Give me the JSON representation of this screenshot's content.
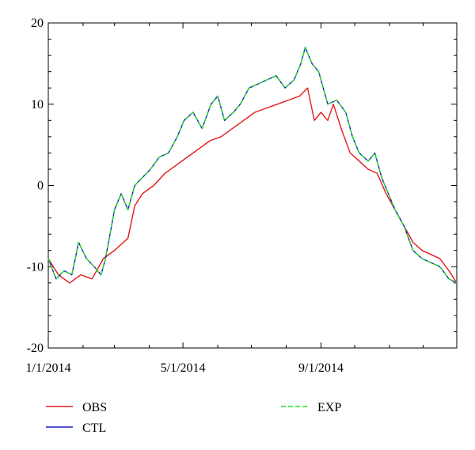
{
  "chart_data": {
    "type": "line",
    "x_unit": "day of year 2014",
    "x_tick_labels": [
      {
        "label": "1/1/2014",
        "x": 1
      },
      {
        "label": "5/1/2014",
        "x": 121
      },
      {
        "label": "9/1/2014",
        "x": 244
      }
    ],
    "xlim": [
      1,
      365
    ],
    "ylim": [
      -20,
      20
    ],
    "y_ticks": [
      -20,
      -10,
      0,
      10,
      20
    ],
    "grid": false,
    "legend_position": "below-plot",
    "series": [
      {
        "name": "OBS",
        "color": "#e41a1c",
        "dash": "solid",
        "points": [
          [
            1,
            -9
          ],
          [
            10,
            -11
          ],
          [
            20,
            -12
          ],
          [
            30,
            -11
          ],
          [
            40,
            -11.5
          ],
          [
            50,
            -9
          ],
          [
            60,
            -8
          ],
          [
            68,
            -7
          ],
          [
            72,
            -6.5
          ],
          [
            78,
            -2.5
          ],
          [
            85,
            -1
          ],
          [
            95,
            0
          ],
          [
            105,
            1.5
          ],
          [
            115,
            2.5
          ],
          [
            125,
            3.5
          ],
          [
            135,
            4.5
          ],
          [
            145,
            5.5
          ],
          [
            155,
            6
          ],
          [
            165,
            7
          ],
          [
            175,
            8
          ],
          [
            185,
            9
          ],
          [
            195,
            9.5
          ],
          [
            205,
            10
          ],
          [
            215,
            10.5
          ],
          [
            225,
            11
          ],
          [
            232,
            12
          ],
          [
            238,
            8
          ],
          [
            244,
            9
          ],
          [
            250,
            8
          ],
          [
            255,
            10
          ],
          [
            262,
            7
          ],
          [
            270,
            4
          ],
          [
            278,
            3
          ],
          [
            286,
            2
          ],
          [
            294,
            1.5
          ],
          [
            302,
            -1
          ],
          [
            310,
            -3
          ],
          [
            318,
            -5
          ],
          [
            326,
            -7
          ],
          [
            334,
            -8
          ],
          [
            342,
            -8.5
          ],
          [
            350,
            -9
          ],
          [
            358,
            -10.5
          ],
          [
            365,
            -12
          ]
        ]
      },
      {
        "name": "CTL",
        "color": "#1a1acc",
        "dash": "solid",
        "points": [
          [
            1,
            -9
          ],
          [
            8,
            -11.5
          ],
          [
            15,
            -10.5
          ],
          [
            22,
            -11
          ],
          [
            28,
            -7
          ],
          [
            35,
            -9
          ],
          [
            42,
            -10
          ],
          [
            48,
            -11
          ],
          [
            52,
            -9
          ],
          [
            56,
            -6
          ],
          [
            60,
            -3
          ],
          [
            66,
            -1
          ],
          [
            72,
            -3
          ],
          [
            78,
            0
          ],
          [
            85,
            1
          ],
          [
            92,
            2
          ],
          [
            100,
            3.5
          ],
          [
            108,
            4
          ],
          [
            116,
            6
          ],
          [
            122,
            8
          ],
          [
            130,
            9
          ],
          [
            138,
            7
          ],
          [
            146,
            10
          ],
          [
            152,
            11
          ],
          [
            158,
            8
          ],
          [
            166,
            9
          ],
          [
            172,
            10
          ],
          [
            180,
            12
          ],
          [
            188,
            12.5
          ],
          [
            196,
            13
          ],
          [
            204,
            13.5
          ],
          [
            212,
            12
          ],
          [
            220,
            13
          ],
          [
            226,
            15
          ],
          [
            230,
            17
          ],
          [
            236,
            15
          ],
          [
            242,
            14
          ],
          [
            250,
            10
          ],
          [
            258,
            10.5
          ],
          [
            266,
            9
          ],
          [
            272,
            6
          ],
          [
            278,
            4
          ],
          [
            286,
            3
          ],
          [
            292,
            4
          ],
          [
            298,
            1
          ],
          [
            304,
            -1
          ],
          [
            310,
            -3
          ],
          [
            318,
            -5
          ],
          [
            326,
            -8
          ],
          [
            334,
            -9
          ],
          [
            342,
            -9.5
          ],
          [
            350,
            -10
          ],
          [
            358,
            -11.5
          ],
          [
            365,
            -12
          ]
        ]
      },
      {
        "name": "EXP",
        "color": "#22dd22",
        "dash": "dashed",
        "points": [
          [
            1,
            -9
          ],
          [
            8,
            -11.5
          ],
          [
            15,
            -10.5
          ],
          [
            22,
            -11
          ],
          [
            28,
            -7
          ],
          [
            35,
            -9
          ],
          [
            42,
            -10
          ],
          [
            48,
            -11
          ],
          [
            52,
            -9
          ],
          [
            56,
            -6
          ],
          [
            60,
            -3
          ],
          [
            66,
            -1
          ],
          [
            72,
            -3
          ],
          [
            78,
            0
          ],
          [
            85,
            1
          ],
          [
            92,
            2
          ],
          [
            100,
            3.5
          ],
          [
            108,
            4
          ],
          [
            116,
            6
          ],
          [
            122,
            8
          ],
          [
            130,
            9
          ],
          [
            138,
            7
          ],
          [
            146,
            10
          ],
          [
            152,
            11
          ],
          [
            158,
            8
          ],
          [
            166,
            9
          ],
          [
            172,
            10
          ],
          [
            180,
            12
          ],
          [
            188,
            12.5
          ],
          [
            196,
            13
          ],
          [
            204,
            13.5
          ],
          [
            212,
            12
          ],
          [
            220,
            13
          ],
          [
            226,
            15
          ],
          [
            230,
            17
          ],
          [
            236,
            15
          ],
          [
            242,
            14
          ],
          [
            250,
            10
          ],
          [
            258,
            10.5
          ],
          [
            266,
            9
          ],
          [
            272,
            6
          ],
          [
            278,
            4
          ],
          [
            286,
            3
          ],
          [
            292,
            4
          ],
          [
            298,
            1
          ],
          [
            304,
            -1
          ],
          [
            310,
            -3
          ],
          [
            318,
            -5
          ],
          [
            326,
            -8
          ],
          [
            334,
            -9
          ],
          [
            342,
            -9.5
          ],
          [
            350,
            -10
          ],
          [
            358,
            -11.5
          ],
          [
            365,
            -12
          ]
        ]
      }
    ]
  }
}
